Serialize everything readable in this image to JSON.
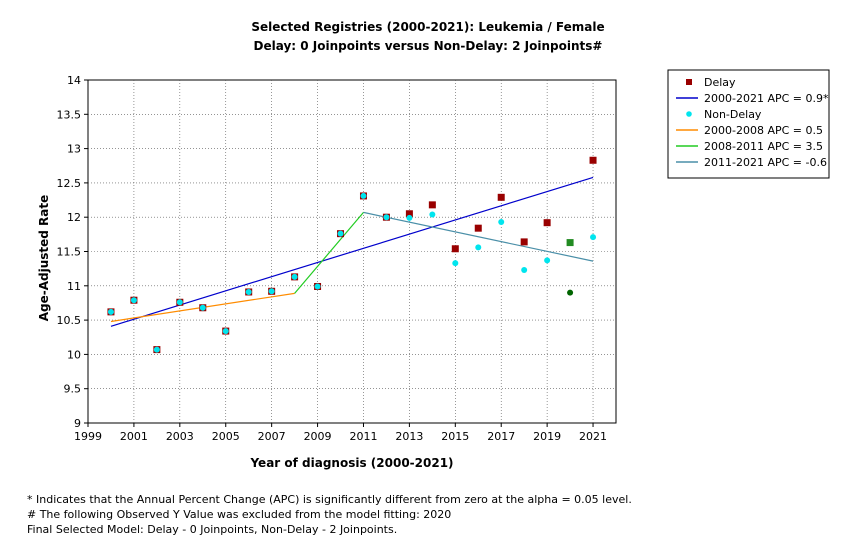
{
  "chart_data": {
    "type": "scatter",
    "title": "Selected Registries (2000-2021): Leukemia / Female",
    "subtitle": "Delay: 0 Joinpoints  versus  Non-Delay: 2 Joinpoints#",
    "xlabel": "Year of diagnosis (2000-2021)",
    "ylabel": "Age-Adjusted Rate",
    "xlim": [
      1999,
      2022
    ],
    "ylim": [
      9,
      14
    ],
    "x_ticks": [
      "1999",
      "2001",
      "2003",
      "2005",
      "2007",
      "2009",
      "2011",
      "2013",
      "2015",
      "2017",
      "2019",
      "2021"
    ],
    "y_ticks": [
      "9",
      "9.5",
      "10",
      "10.5",
      "11",
      "11.5",
      "12",
      "12.5",
      "13",
      "13.5",
      "14"
    ],
    "grid": true,
    "legend_position": "right",
    "series": [
      {
        "name": "Delay",
        "kind": "points",
        "marker": "square",
        "color": "#990000",
        "x": [
          2000,
          2001,
          2002,
          2003,
          2004,
          2005,
          2006,
          2007,
          2008,
          2009,
          2010,
          2011,
          2012,
          2013,
          2014,
          2015,
          2016,
          2017,
          2018,
          2019,
          2021
        ],
        "y": [
          10.62,
          10.79,
          10.07,
          10.76,
          10.68,
          10.34,
          10.91,
          10.92,
          11.13,
          10.99,
          11.76,
          12.31,
          12.0,
          12.05,
          12.18,
          11.54,
          11.84,
          12.29,
          11.64,
          11.92,
          12.83
        ]
      },
      {
        "name": "2000-2021 APC  =  0.9*",
        "kind": "line",
        "color": "#0000cc",
        "x": [
          2000,
          2021
        ],
        "y": [
          10.41,
          12.58
        ]
      },
      {
        "name": "Non-Delay",
        "kind": "points",
        "marker": "circle",
        "color": "#00e5ee",
        "x": [
          2000,
          2001,
          2002,
          2003,
          2004,
          2005,
          2006,
          2007,
          2008,
          2009,
          2010,
          2011,
          2012,
          2013,
          2014,
          2015,
          2016,
          2017,
          2018,
          2019,
          2021
        ],
        "y": [
          10.62,
          10.79,
          10.07,
          10.76,
          10.68,
          10.34,
          10.91,
          10.92,
          11.13,
          10.99,
          11.76,
          12.31,
          12.0,
          11.99,
          12.04,
          11.33,
          11.56,
          11.93,
          11.23,
          11.37,
          11.71
        ]
      },
      {
        "name": "2000-2008 APC  =  0.5",
        "kind": "line",
        "color": "#ff8c00",
        "x": [
          2000,
          2008
        ],
        "y": [
          10.48,
          10.89
        ]
      },
      {
        "name": "2008-2011 APC  =  3.5",
        "kind": "line",
        "color": "#22cc22",
        "x": [
          2008,
          2011
        ],
        "y": [
          10.89,
          12.07
        ]
      },
      {
        "name": "2011-2021 APC  =  -0.6",
        "kind": "line",
        "color": "#4a8fa8",
        "x": [
          2011,
          2021
        ],
        "y": [
          12.07,
          11.36
        ]
      }
    ],
    "excluded_points": {
      "marker_delay_color": "#228b22",
      "marker_nondelay_color": "#006400",
      "x": 2020,
      "delay_y": 11.63,
      "nondelay_y": 10.9
    }
  },
  "footnotes": [
    "* Indicates that the Annual Percent Change (APC) is significantly different from zero at the alpha = 0.05 level.",
    " # The following Observed Y Value was excluded from the model fitting: 2020",
    "Final Selected Model: Delay - 0 Joinpoints, Non-Delay - 2 Joinpoints."
  ]
}
